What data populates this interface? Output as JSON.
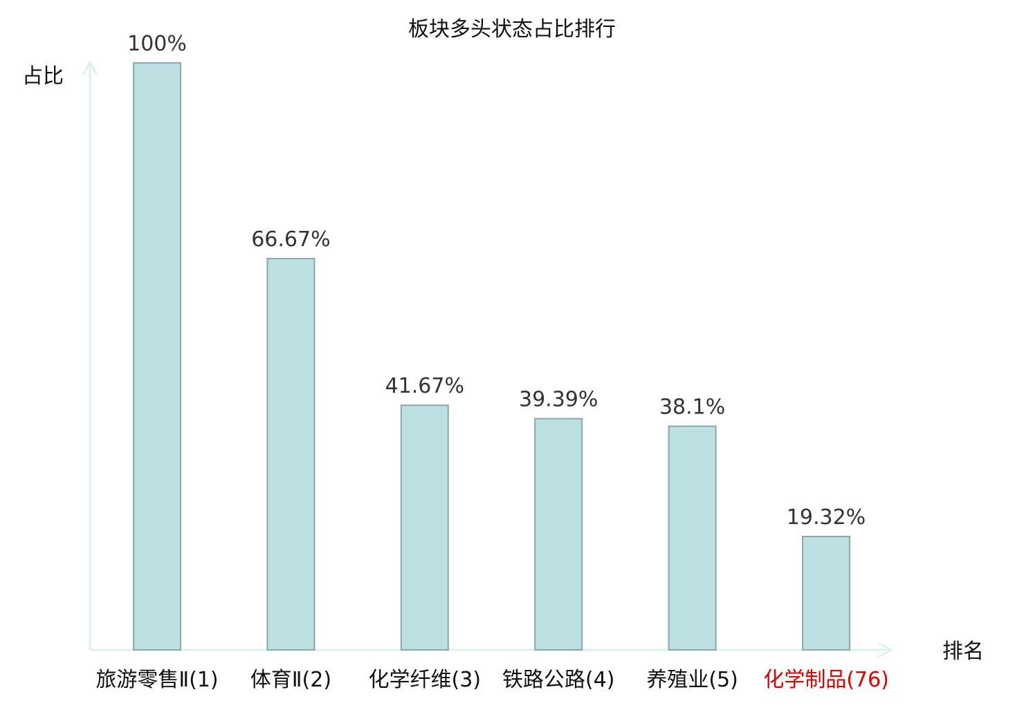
{
  "chart_data": {
    "type": "bar",
    "title": "板块多头状态占比排行",
    "ylabel": "占比",
    "xlabel": "排名",
    "ylim": [
      0,
      100
    ],
    "categories": [
      {
        "name": "旅游零售Ⅱ",
        "rank": "(1)"
      },
      {
        "name": "体育Ⅱ",
        "rank": "(2)"
      },
      {
        "name": "化学纤维",
        "rank": "(3)"
      },
      {
        "name": "铁路公路",
        "rank": "(4)"
      },
      {
        "name": "养殖业",
        "rank": "(5)"
      },
      {
        "name": "化学制品",
        "rank": "(76)",
        "highlight": true
      }
    ],
    "values": [
      100,
      66.67,
      41.67,
      39.39,
      38.1,
      19.32
    ],
    "value_labels": [
      "100%",
      "66.67%",
      "41.67%",
      "39.39%",
      "38.1%",
      "19.32%"
    ],
    "grid": false,
    "colors": {
      "bar_fill": "#bde0e3",
      "bar_stroke": "#8aa7aa",
      "axis": "#dff1ee",
      "highlight": "#e00000",
      "text": "#111111"
    }
  }
}
